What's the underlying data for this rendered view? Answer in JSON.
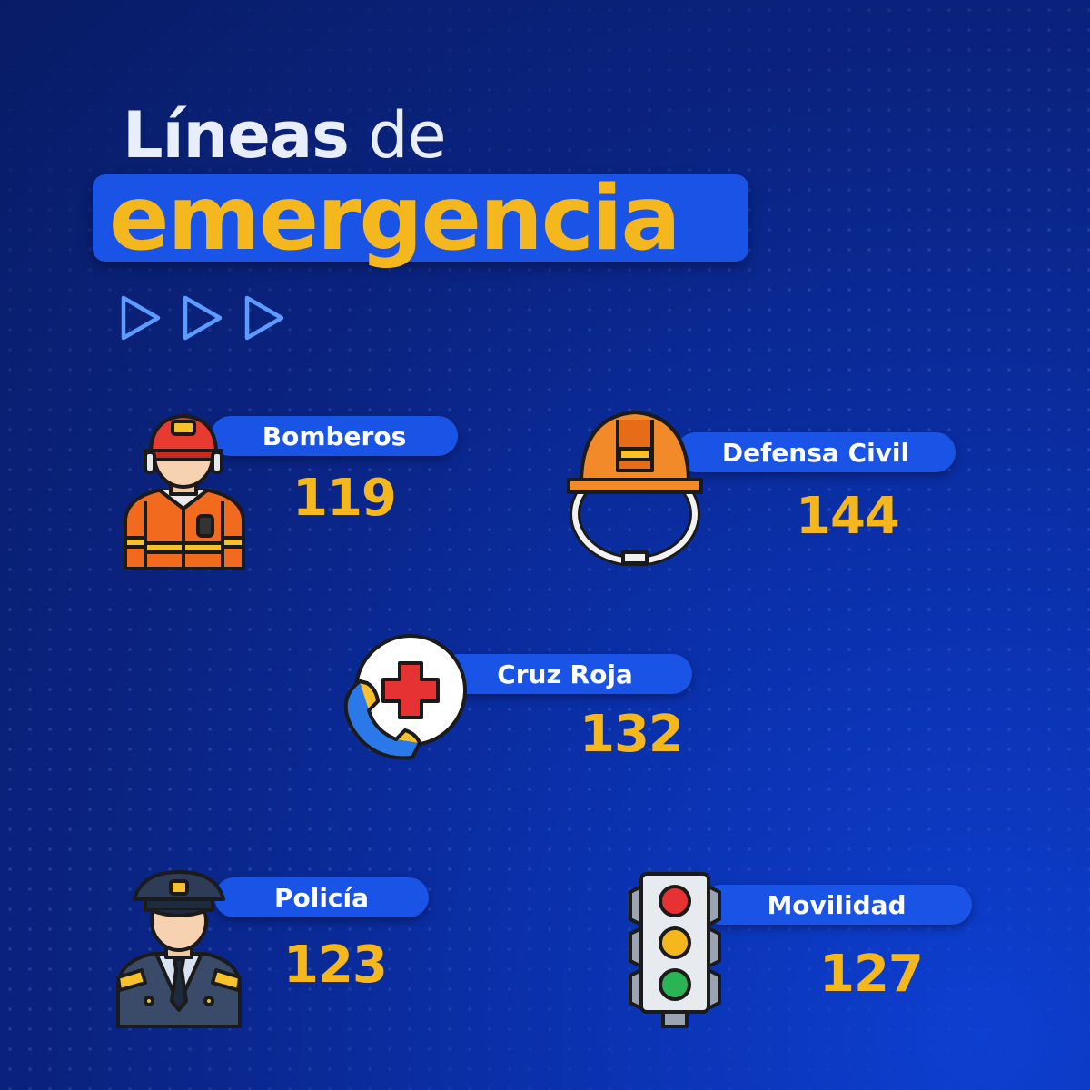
{
  "title": {
    "line1_light": "Líneas",
    "line1_rest": " de",
    "line2": "emergencia"
  },
  "colors": {
    "accent": "#f4b81e",
    "pill": "#1a54e6",
    "background": "#0a2a9a"
  },
  "decor": {
    "arrow_icons": [
      "play-arrow-icon",
      "play-arrow-icon",
      "play-arrow-icon"
    ]
  },
  "lines": [
    {
      "label": "Bomberos",
      "number": "119",
      "icon": "firefighter-icon"
    },
    {
      "label": "Defensa Civil",
      "number": "144",
      "icon": "hard-hat-icon"
    },
    {
      "label": "Cruz Roja",
      "number": "132",
      "icon": "red-cross-phone-icon"
    },
    {
      "label": "Policía",
      "number": "123",
      "icon": "police-officer-icon"
    },
    {
      "label": "Movilidad",
      "number": "127",
      "icon": "traffic-light-icon"
    }
  ]
}
